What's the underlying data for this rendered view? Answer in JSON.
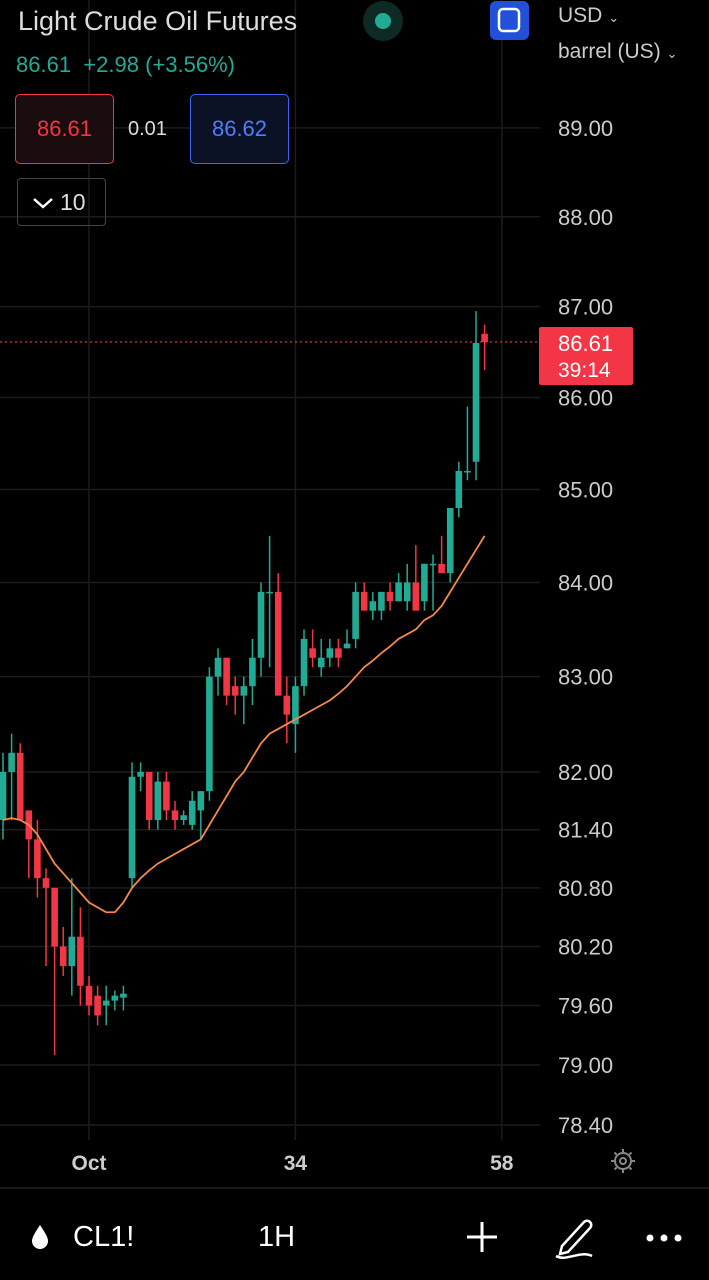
{
  "header": {
    "title": "Light Crude Oil Futures",
    "price": "86.61",
    "change": "+2.98",
    "change_pct": "(+3.56%)",
    "bid": "86.61",
    "spread": "0.01",
    "ask": "86.62",
    "quantity": "10",
    "currency": "USD",
    "unit": "barrel (US)"
  },
  "toolbar": {
    "symbol": "CL1!",
    "interval": "1H"
  },
  "chart_data": {
    "type": "candlestick",
    "log_scale": true,
    "grid": true,
    "up_color": "#22ab94",
    "down_color": "#f23645",
    "x": [
      0,
      1,
      2,
      3,
      4,
      5,
      6,
      7,
      8,
      9,
      10,
      11,
      12,
      13,
      14,
      15,
      16,
      17,
      18,
      19,
      20,
      21,
      22,
      23,
      24,
      25,
      26,
      27,
      28,
      29,
      30,
      31,
      32,
      33,
      34,
      35,
      36,
      37,
      38,
      39,
      40,
      41,
      42,
      43,
      44,
      45,
      46,
      47,
      48,
      49,
      50,
      51,
      52,
      53,
      54,
      55,
      56
    ],
    "open": [
      81.5,
      82.0,
      82.2,
      81.6,
      81.3,
      80.9,
      80.8,
      80.2,
      80.0,
      80.3,
      79.8,
      79.7,
      79.6,
      79.65,
      79.68,
      80.9,
      81.95,
      82.0,
      81.5,
      81.9,
      81.6,
      81.5,
      81.45,
      81.6,
      81.8,
      83.0,
      83.2,
      82.9,
      82.8,
      82.9,
      83.2,
      83.9,
      83.9,
      82.8,
      82.5,
      82.9,
      83.3,
      83.1,
      83.2,
      83.3,
      83.3,
      83.4,
      83.9,
      83.7,
      83.7,
      83.9,
      83.8,
      83.8,
      84.0,
      83.8,
      84.2,
      84.2,
      84.1,
      84.8,
      85.2,
      85.3,
      86.7
    ],
    "high": [
      82.2,
      82.4,
      82.3,
      81.6,
      81.5,
      81.0,
      80.8,
      80.4,
      80.9,
      80.6,
      79.9,
      79.8,
      79.8,
      79.75,
      79.8,
      82.1,
      82.1,
      82.0,
      82.0,
      82.0,
      81.7,
      81.6,
      81.8,
      81.8,
      83.1,
      83.3,
      83.2,
      83.0,
      83.0,
      83.4,
      84.0,
      84.5,
      84.1,
      83.0,
      83.0,
      83.5,
      83.5,
      83.4,
      83.4,
      83.4,
      83.5,
      84.0,
      84.0,
      83.9,
      83.9,
      84.0,
      84.1,
      84.2,
      84.4,
      84.2,
      84.3,
      84.5,
      84.8,
      85.3,
      85.9,
      86.95,
      86.8
    ],
    "low": [
      81.3,
      81.5,
      81.5,
      80.9,
      80.7,
      80.0,
      79.1,
      79.9,
      79.7,
      79.6,
      79.5,
      79.4,
      79.4,
      79.55,
      79.55,
      80.8,
      81.8,
      81.4,
      81.4,
      81.5,
      81.4,
      81.45,
      81.4,
      81.3,
      81.7,
      82.8,
      82.7,
      82.6,
      82.5,
      82.7,
      83.0,
      83.1,
      82.8,
      82.3,
      82.2,
      82.8,
      83.1,
      83.0,
      83.1,
      83.1,
      83.3,
      83.3,
      83.7,
      83.6,
      83.6,
      83.7,
      83.8,
      83.7,
      83.7,
      83.7,
      83.7,
      84.1,
      84.0,
      84.7,
      85.1,
      85.1,
      86.3
    ],
    "close": [
      82.0,
      82.2,
      81.5,
      81.3,
      80.9,
      80.8,
      80.2,
      80.0,
      80.3,
      79.8,
      79.6,
      79.5,
      79.65,
      79.7,
      79.72,
      81.95,
      82.0,
      81.5,
      81.9,
      81.6,
      81.5,
      81.55,
      81.7,
      81.8,
      83.0,
      83.2,
      82.8,
      82.8,
      82.9,
      83.2,
      83.9,
      83.9,
      82.8,
      82.6,
      82.9,
      83.4,
      83.2,
      83.2,
      83.3,
      83.2,
      83.35,
      83.9,
      83.7,
      83.8,
      83.9,
      83.8,
      84.0,
      84.0,
      83.7,
      84.2,
      84.2,
      84.1,
      84.8,
      85.2,
      85.2,
      86.6,
      86.61
    ],
    "ma": {
      "color": "#f7894a",
      "values": [
        81.5,
        81.52,
        81.5,
        81.45,
        81.35,
        81.2,
        81.05,
        80.95,
        80.85,
        80.75,
        80.65,
        80.6,
        80.55,
        80.55,
        80.65,
        80.8,
        80.9,
        80.98,
        81.05,
        81.1,
        81.15,
        81.2,
        81.25,
        81.3,
        81.45,
        81.6,
        81.75,
        81.9,
        82.0,
        82.15,
        82.3,
        82.4,
        82.45,
        82.5,
        82.55,
        82.6,
        82.65,
        82.7,
        82.75,
        82.82,
        82.9,
        83.0,
        83.1,
        83.17,
        83.25,
        83.32,
        83.4,
        83.45,
        83.5,
        83.6,
        83.65,
        83.75,
        83.9,
        84.05,
        84.2,
        84.35,
        84.5
      ]
    },
    "last_price": 86.61,
    "countdown": "39:14",
    "xlim": [
      -0.35,
      62.44
    ],
    "xticks": [
      {
        "value": 10,
        "label": "Oct"
      },
      34,
      58
    ],
    "ylim": [
      78.25,
      90.46
    ],
    "yticks": [
      {
        "value": 89,
        "label": "89.00"
      },
      {
        "value": 88,
        "label": "88.00"
      },
      {
        "value": 87,
        "label": "87.00"
      },
      {
        "value": 86,
        "label": "86.00"
      },
      {
        "value": 85,
        "label": "85.00"
      },
      {
        "value": 84,
        "label": "84.00"
      },
      {
        "value": 83,
        "label": "83.00"
      },
      {
        "value": 82,
        "label": "82.00"
      },
      {
        "value": 81.4,
        "label": "81.40"
      },
      {
        "value": 80.8,
        "label": "80.80"
      },
      {
        "value": 80.2,
        "label": "80.20"
      },
      {
        "value": 79.6,
        "label": "79.60"
      },
      {
        "value": 79,
        "label": "79.00"
      },
      {
        "value": 78.4,
        "label": "78.40"
      }
    ]
  }
}
